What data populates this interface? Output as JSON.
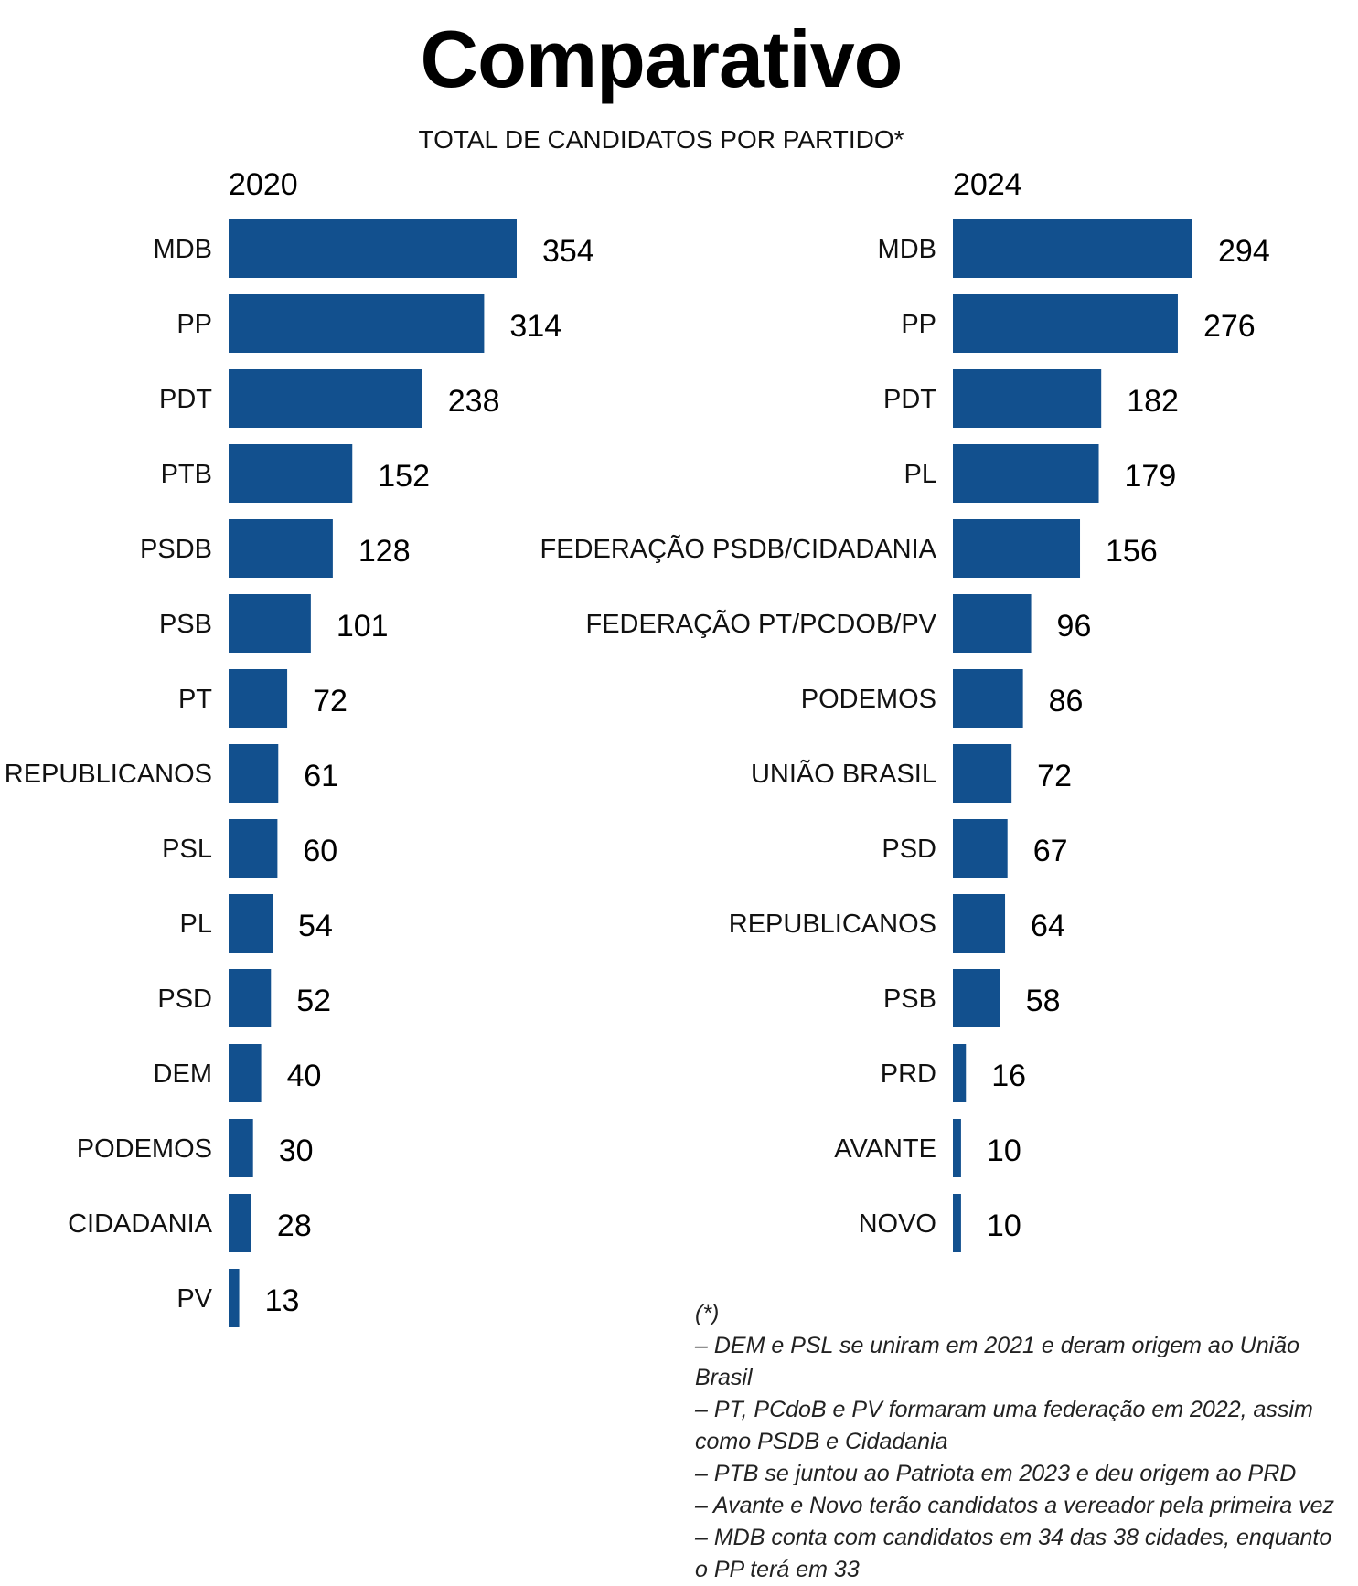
{
  "title": "Comparativo",
  "subtitle": "TOTAL DE CANDIDATOS POR PARTIDO*",
  "chart_data": [
    {
      "type": "bar",
      "orientation": "horizontal",
      "title": "2020",
      "color": "#12508e",
      "categories": [
        "MDB",
        "PP",
        "PDT",
        "PTB",
        "PSDB",
        "PSB",
        "PT",
        "REPUBLICANOS",
        "PSL",
        "PL",
        "PSD",
        "DEM",
        "PODEMOS",
        "CIDADANIA",
        "PV"
      ],
      "values": [
        354,
        314,
        238,
        152,
        128,
        101,
        72,
        61,
        60,
        54,
        52,
        40,
        30,
        28,
        13
      ]
    },
    {
      "type": "bar",
      "orientation": "horizontal",
      "title": "2024",
      "color": "#12508e",
      "categories": [
        "MDB",
        "PP",
        "PDT",
        "PL",
        "FEDERAÇÃO PSDB/CIDADANIA",
        "FEDERAÇÃO PT/PCDOB/PV",
        "PODEMOS",
        "UNIÃO BRASIL",
        "PSD",
        "REPUBLICANOS",
        "PSB",
        "PRD",
        "AVANTE",
        "NOVO"
      ],
      "values": [
        294,
        276,
        182,
        179,
        156,
        96,
        86,
        72,
        67,
        64,
        58,
        16,
        10,
        10
      ]
    }
  ],
  "notes": [
    "(*)",
    "– DEM e PSL se uniram em 2021 e deram origem ao União Brasil",
    "– PT, PCdoB e PV formaram uma federação em 2022, assim como PSDB e Cidadania",
    "– PTB se juntou ao Patriota em 2023 e deu origem ao PRD",
    "– Avante e Novo terão candidatos a vereador pela primeira vez",
    "– MDB conta com candidatos em 34 das 38 cidades, enquanto o PP terá em 33"
  ]
}
